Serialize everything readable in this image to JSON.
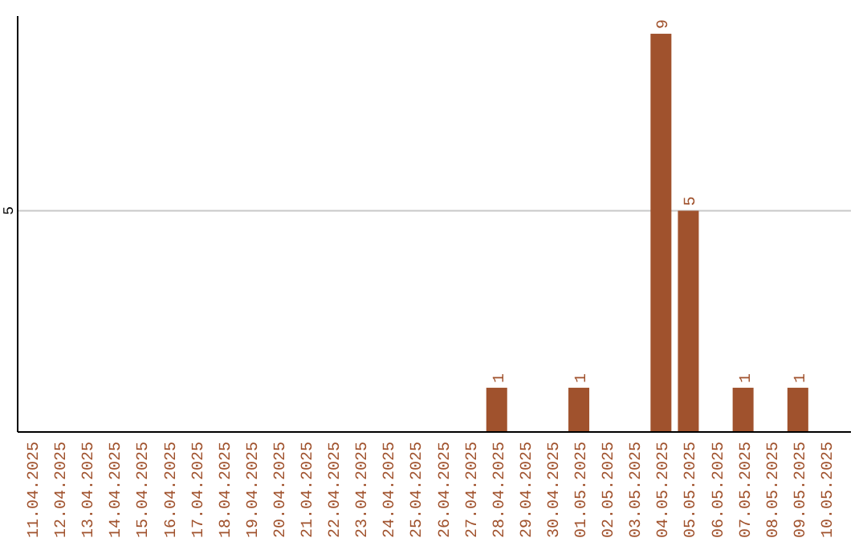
{
  "chart_data": {
    "type": "bar",
    "categories": [
      "11.04.2025",
      "12.04.2025",
      "13.04.2025",
      "14.04.2025",
      "15.04.2025",
      "16.04.2025",
      "17.04.2025",
      "18.04.2025",
      "19.04.2025",
      "20.04.2025",
      "21.04.2025",
      "22.04.2025",
      "23.04.2025",
      "24.04.2025",
      "25.04.2025",
      "26.04.2025",
      "27.04.2025",
      "28.04.2025",
      "29.04.2025",
      "30.04.2025",
      "01.05.2025",
      "02.05.2025",
      "03.05.2025",
      "04.05.2025",
      "05.05.2025",
      "06.05.2025",
      "07.05.2025",
      "08.05.2025",
      "09.05.2025",
      "10.05.2025"
    ],
    "values": [
      null,
      null,
      null,
      null,
      null,
      null,
      null,
      null,
      null,
      null,
      null,
      null,
      null,
      null,
      null,
      null,
      null,
      1,
      null,
      null,
      1,
      null,
      null,
      9,
      5,
      null,
      1,
      null,
      1,
      null
    ],
    "color": "#a0522d",
    "ylim": [
      0,
      9.4
    ],
    "yticks": [
      5
    ],
    "grid": "y",
    "data_labels": true
  }
}
